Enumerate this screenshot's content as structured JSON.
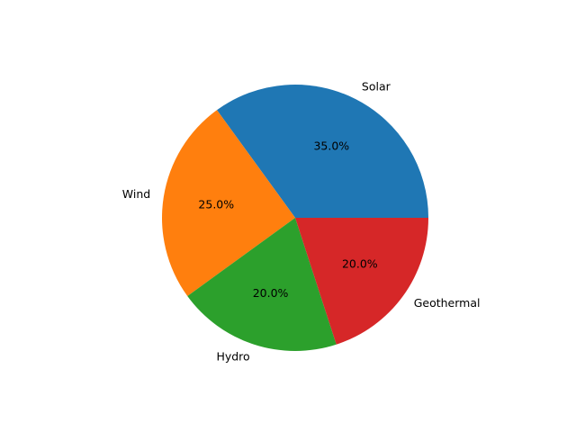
{
  "chart_data": {
    "type": "pie",
    "title": "",
    "start_angle_deg": 0,
    "direction": "counterclockwise",
    "slices": [
      {
        "label": "Solar",
        "value": 35,
        "pct_label": "35.0%",
        "color": "#1f77b4"
      },
      {
        "label": "Wind",
        "value": 25,
        "pct_label": "25.0%",
        "color": "#ff7f0e"
      },
      {
        "label": "Hydro",
        "value": 20,
        "pct_label": "20.0%",
        "color": "#2ca02c"
      },
      {
        "label": "Geothermal",
        "value": 20,
        "pct_label": "20.0%",
        "color": "#d62728"
      }
    ],
    "legend": "none",
    "grid": false
  }
}
